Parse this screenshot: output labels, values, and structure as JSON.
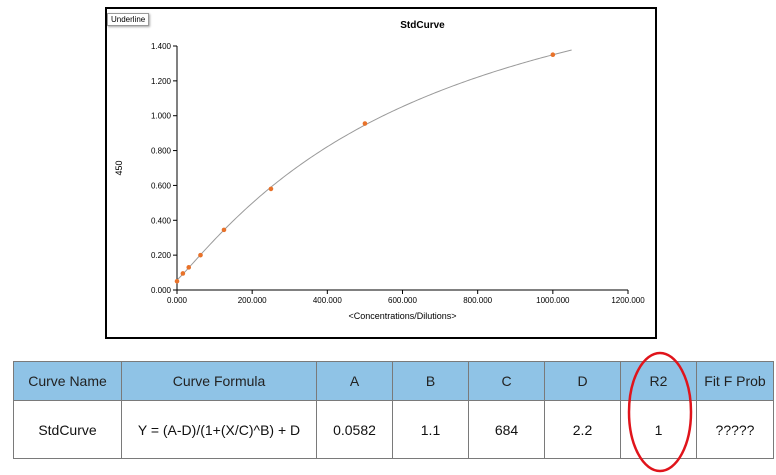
{
  "tooltip": "Underline",
  "chart_data": {
    "type": "scatter",
    "title": "StdCurve",
    "xlabel": "<Concentrations/Dilutions>",
    "ylabel": "450",
    "xlim": [
      0,
      1200
    ],
    "ylim": [
      0,
      1.4
    ],
    "x_ticks": [
      "0.000",
      "200.000",
      "400.000",
      "600.000",
      "800.000",
      "1000.000",
      "1200.000"
    ],
    "y_ticks": [
      "0.000",
      "0.200",
      "0.400",
      "0.600",
      "0.800",
      "1.000",
      "1.200",
      "1.400"
    ],
    "series": [
      {
        "x": [
          0,
          15.6,
          31.25,
          62.5,
          125,
          250,
          500,
          1000
        ],
        "y": [
          0.05,
          0.095,
          0.13,
          0.2,
          0.345,
          0.58,
          0.955,
          1.35
        ]
      }
    ],
    "fit": {
      "A": 0.0582,
      "B": 1.1,
      "C": 684,
      "D": 2.2,
      "x_end": 1050
    },
    "point_color": "#e8722a",
    "curve_color": "#9a9a9a"
  },
  "table": {
    "headers": [
      "Curve Name",
      "Curve Formula",
      "A",
      "B",
      "C",
      "D",
      "R2",
      "Fit F Prob"
    ],
    "row": [
      "StdCurve",
      "Y = (A-D)/(1+(X/C)^B) + D",
      "0.0582",
      "1.1",
      "684",
      "2.2",
      "1",
      "?????"
    ],
    "header_bg": "#8fc3e6"
  },
  "highlight_color": "#e0141b"
}
